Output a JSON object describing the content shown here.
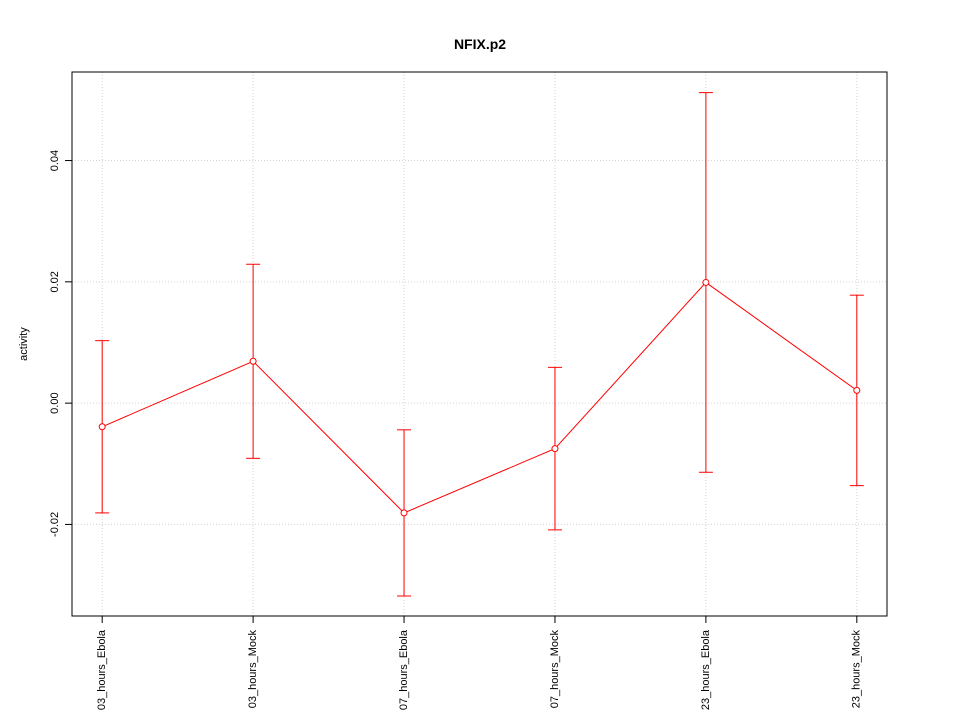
{
  "chart_data": {
    "type": "line",
    "title": "NFIX.p2",
    "y_label": "activity",
    "categories": [
      "03_hours_Ebola",
      "03_hours_Mock",
      "07_hours_Ebola",
      "07_hours_Mock",
      "23_hours_Ebola",
      "23_hours_Mock"
    ],
    "values": [
      -0.0039,
      0.0069,
      -0.0181,
      -0.0075,
      0.0199,
      0.0021
    ],
    "errors": [
      0.0142,
      0.016,
      0.0137,
      0.0134,
      0.0313,
      0.0157
    ],
    "color": "#ff0000",
    "ylim": [
      -0.0351,
      0.0546
    ],
    "yticks": [
      -0.02,
      {
        "value": 0,
        "label": "0.00"
      },
      0.02,
      0.04
    ],
    "grid": true
  }
}
